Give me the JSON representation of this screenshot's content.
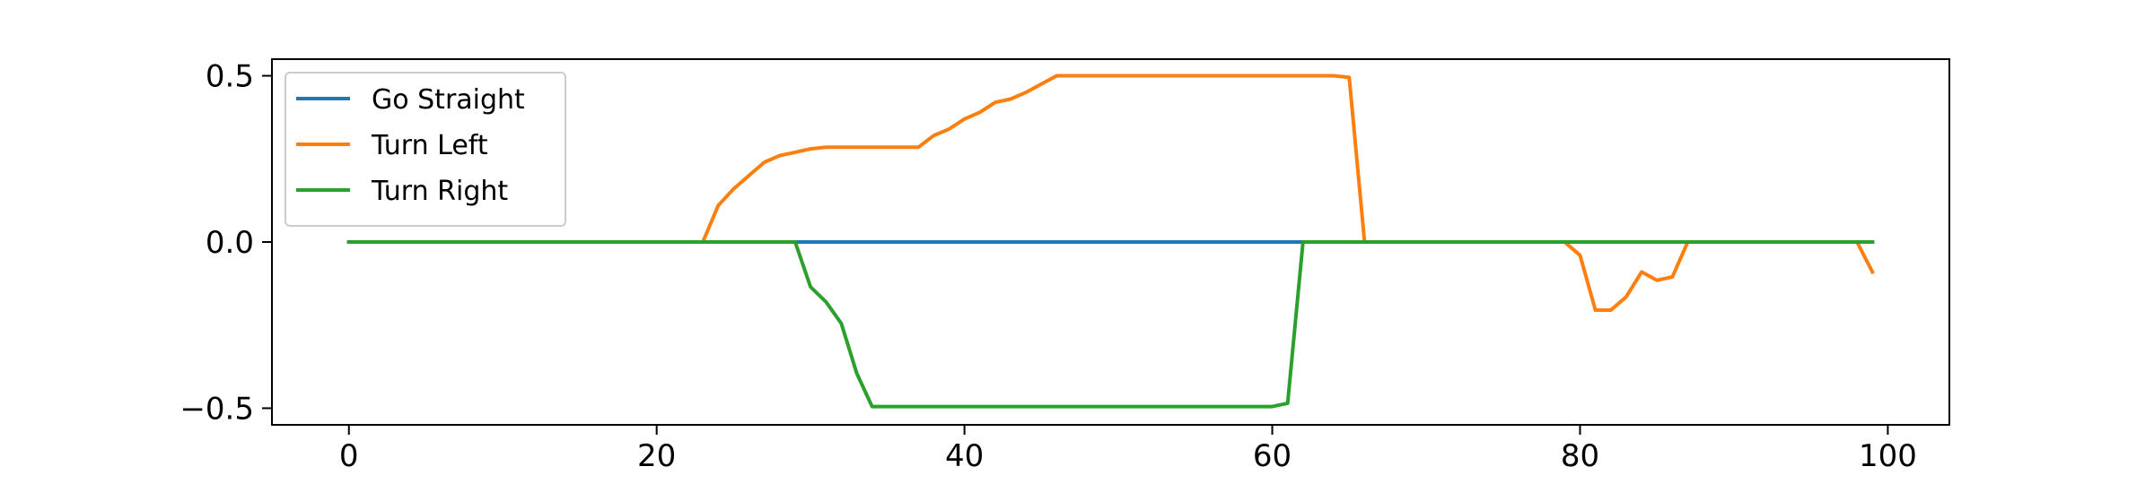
{
  "chart_data": {
    "type": "line",
    "title": "",
    "xlabel": "",
    "ylabel": "",
    "xlim": [
      -5,
      104
    ],
    "ylim": [
      -0.55,
      0.55
    ],
    "x_ticks": [
      0,
      20,
      40,
      60,
      80,
      100
    ],
    "x_tick_labels": [
      "0",
      "20",
      "40",
      "60",
      "80",
      "100"
    ],
    "y_ticks": [
      0.5,
      0.0,
      -0.5
    ],
    "y_tick_labels": [
      "0.5",
      "0.0",
      "−0.5"
    ],
    "grid": false,
    "legend_position": "top-left",
    "series": [
      {
        "name": "Go Straight",
        "color": "#1f77b4",
        "points": [
          [
            0,
            0
          ],
          [
            99,
            0
          ]
        ]
      },
      {
        "name": "Turn Left",
        "color": "#ff7f0e",
        "points": [
          [
            0,
            0
          ],
          [
            23,
            0
          ],
          [
            24,
            0.11
          ],
          [
            25,
            0.16
          ],
          [
            26,
            0.2
          ],
          [
            27,
            0.24
          ],
          [
            28,
            0.26
          ],
          [
            29,
            0.27
          ],
          [
            30,
            0.28
          ],
          [
            31,
            0.285
          ],
          [
            37,
            0.285
          ],
          [
            38,
            0.32
          ],
          [
            39,
            0.34
          ],
          [
            40,
            0.37
          ],
          [
            41,
            0.39
          ],
          [
            42,
            0.42
          ],
          [
            43,
            0.43
          ],
          [
            44,
            0.45
          ],
          [
            45,
            0.475
          ],
          [
            46,
            0.5
          ],
          [
            64,
            0.5
          ],
          [
            65,
            0.495
          ],
          [
            66,
            0
          ],
          [
            79,
            0
          ],
          [
            80,
            -0.04
          ],
          [
            81,
            -0.205
          ],
          [
            82,
            -0.205
          ],
          [
            83,
            -0.165
          ],
          [
            84,
            -0.09
          ],
          [
            85,
            -0.115
          ],
          [
            86,
            -0.105
          ],
          [
            87,
            0
          ],
          [
            98,
            0
          ],
          [
            99,
            -0.09
          ]
        ]
      },
      {
        "name": "Turn Right",
        "color": "#2ca02c",
        "points": [
          [
            0,
            0
          ],
          [
            29,
            0
          ],
          [
            30,
            -0.135
          ],
          [
            31,
            -0.18
          ],
          [
            32,
            -0.245
          ],
          [
            33,
            -0.395
          ],
          [
            34,
            -0.495
          ],
          [
            60,
            -0.495
          ],
          [
            61,
            -0.485
          ],
          [
            62,
            0
          ],
          [
            99,
            0
          ]
        ]
      }
    ]
  }
}
